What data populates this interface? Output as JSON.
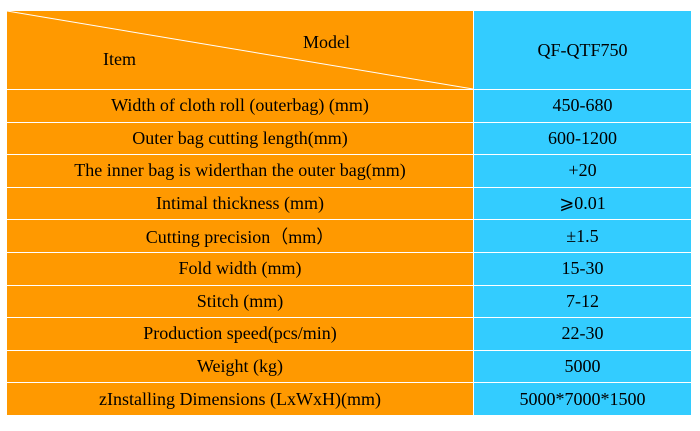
{
  "header": {
    "model_label": "Model",
    "item_label": "Item",
    "model_value": "QF-QTF750"
  },
  "rows": [
    {
      "label": "Width of cloth roll (outerbag)    (mm)",
      "value": "450-680"
    },
    {
      "label": "Outer bag cutting length(mm)",
      "value": "600-1200"
    },
    {
      "label": "The inner bag is widerthan the outer bag(mm)",
      "value": "+20"
    },
    {
      "label": "Intimal thickness (mm)",
      "value": "⩾0.01"
    },
    {
      "label": "Cutting precision（mm）",
      "value": "±1.5"
    },
    {
      "label": "Fold width (mm)",
      "value": "15-30"
    },
    {
      "label": "Stitch (mm)",
      "value": "7-12"
    },
    {
      "label": "Production speed(pcs/min)",
      "value": "22-30"
    },
    {
      "label": "Weight (kg)",
      "value": "5000"
    },
    {
      "label": "zInstalling Dimensions (LxWxH)(mm)",
      "value": "5000*7000*1500"
    }
  ],
  "colors": {
    "label_bg": "#ff9900",
    "value_bg": "#33ccff"
  }
}
